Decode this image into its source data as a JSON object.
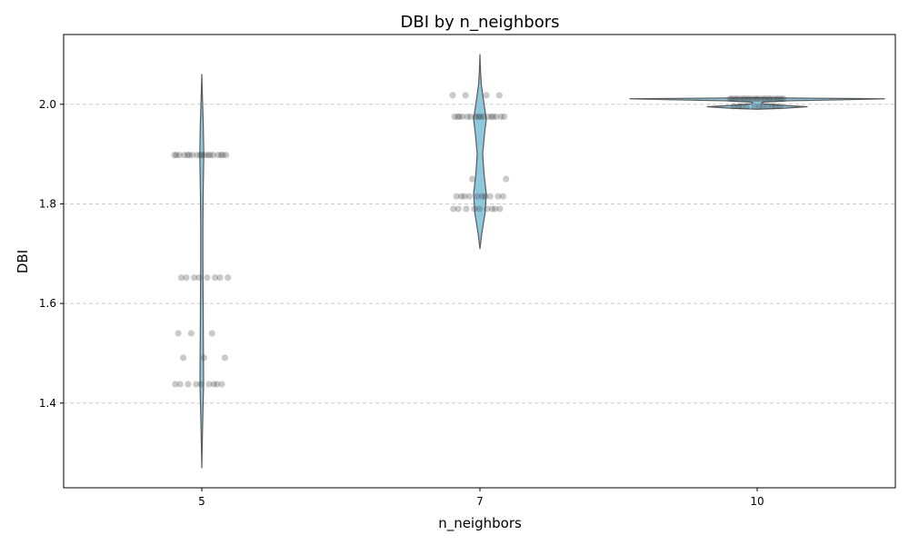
{
  "chart_data": {
    "type": "violin",
    "title": "DBI by n_neighbors",
    "xlabel": "n_neighbors",
    "ylabel": "DBI",
    "categories": [
      "5",
      "7",
      "10"
    ],
    "ylim": [
      1.23,
      2.14
    ],
    "yticks": [
      1.4,
      1.6,
      1.8,
      2.0
    ],
    "ytick_labels": [
      "1.4",
      "1.6",
      "1.8",
      "2.0"
    ],
    "grid": "y-dashed",
    "colors": {
      "violin_fill": "#8ec8df",
      "violin_edge": "#5a5a5a",
      "point": "#404040",
      "grid": "#cccccc"
    },
    "violins": [
      {
        "category": "5",
        "min": 1.27,
        "max": 2.06,
        "profile": [
          [
            1.27,
            0.0
          ],
          [
            1.32,
            0.5
          ],
          [
            1.38,
            1.2
          ],
          [
            1.44,
            2.0
          ],
          [
            1.5,
            1.8
          ],
          [
            1.56,
            1.6
          ],
          [
            1.62,
            1.4
          ],
          [
            1.68,
            1.2
          ],
          [
            1.75,
            1.2
          ],
          [
            1.82,
            1.5
          ],
          [
            1.9,
            2.2
          ],
          [
            1.96,
            1.6
          ],
          [
            2.02,
            0.6
          ],
          [
            2.06,
            0.0
          ]
        ]
      },
      {
        "category": "7",
        "min": 1.71,
        "max": 2.1,
        "profile": [
          [
            1.71,
            0.0
          ],
          [
            1.74,
            2.0
          ],
          [
            1.78,
            5.5
          ],
          [
            1.82,
            7.0
          ],
          [
            1.86,
            4.5
          ],
          [
            1.9,
            3.0
          ],
          [
            1.94,
            5.0
          ],
          [
            1.97,
            7.0
          ],
          [
            2.0,
            4.5
          ],
          [
            2.04,
            1.5
          ],
          [
            2.07,
            0.5
          ],
          [
            2.1,
            0.0
          ]
        ]
      },
      {
        "category": "10",
        "min": 1.99,
        "max": 2.013,
        "profile": [
          [
            1.99,
            0.0
          ],
          [
            1.992,
            30.0
          ],
          [
            1.995,
            55.0
          ],
          [
            1.998,
            25.0
          ],
          [
            2.001,
            6.0
          ],
          [
            2.004,
            5.0
          ],
          [
            2.007,
            35.0
          ],
          [
            2.009,
            95.0
          ],
          [
            2.011,
            140.0
          ],
          [
            2.013,
            0.0
          ]
        ]
      }
    ],
    "points": [
      {
        "category": "5",
        "values": [
          1.898,
          1.898,
          1.898,
          1.898,
          1.898,
          1.898,
          1.898,
          1.898,
          1.898,
          1.898,
          1.898,
          1.898,
          1.898,
          1.898,
          1.898,
          1.898,
          1.898,
          1.898,
          1.652,
          1.652,
          1.652,
          1.652,
          1.652,
          1.652,
          1.652,
          1.652,
          1.54,
          1.54,
          1.54,
          1.491,
          1.491,
          1.491,
          1.438,
          1.438,
          1.438,
          1.438,
          1.438,
          1.438,
          1.438,
          1.438,
          1.438
        ]
      },
      {
        "category": "7",
        "values": [
          2.018,
          2.018,
          2.018,
          2.018,
          1.975,
          1.975,
          1.975,
          1.975,
          1.975,
          1.975,
          1.975,
          1.975,
          1.975,
          1.975,
          1.975,
          1.975,
          1.975,
          1.975,
          1.975,
          1.975,
          1.85,
          1.85,
          1.815,
          1.815,
          1.815,
          1.815,
          1.815,
          1.815,
          1.815,
          1.815,
          1.815,
          1.815,
          1.79,
          1.79,
          1.79,
          1.79,
          1.79,
          1.79,
          1.79,
          1.79,
          1.79
        ]
      },
      {
        "category": "10",
        "values": [
          2.011,
          2.011,
          2.011,
          2.011,
          2.011,
          2.011,
          2.011,
          2.011,
          2.011,
          2.011,
          2.011,
          2.011,
          2.011,
          2.011,
          2.011,
          2.011,
          2.011,
          2.011,
          2.011,
          2.011,
          2.011,
          2.011,
          1.996,
          1.996,
          1.996,
          1.996,
          1.996,
          1.996,
          1.996,
          1.996,
          1.996,
          1.996,
          1.996
        ]
      }
    ]
  }
}
